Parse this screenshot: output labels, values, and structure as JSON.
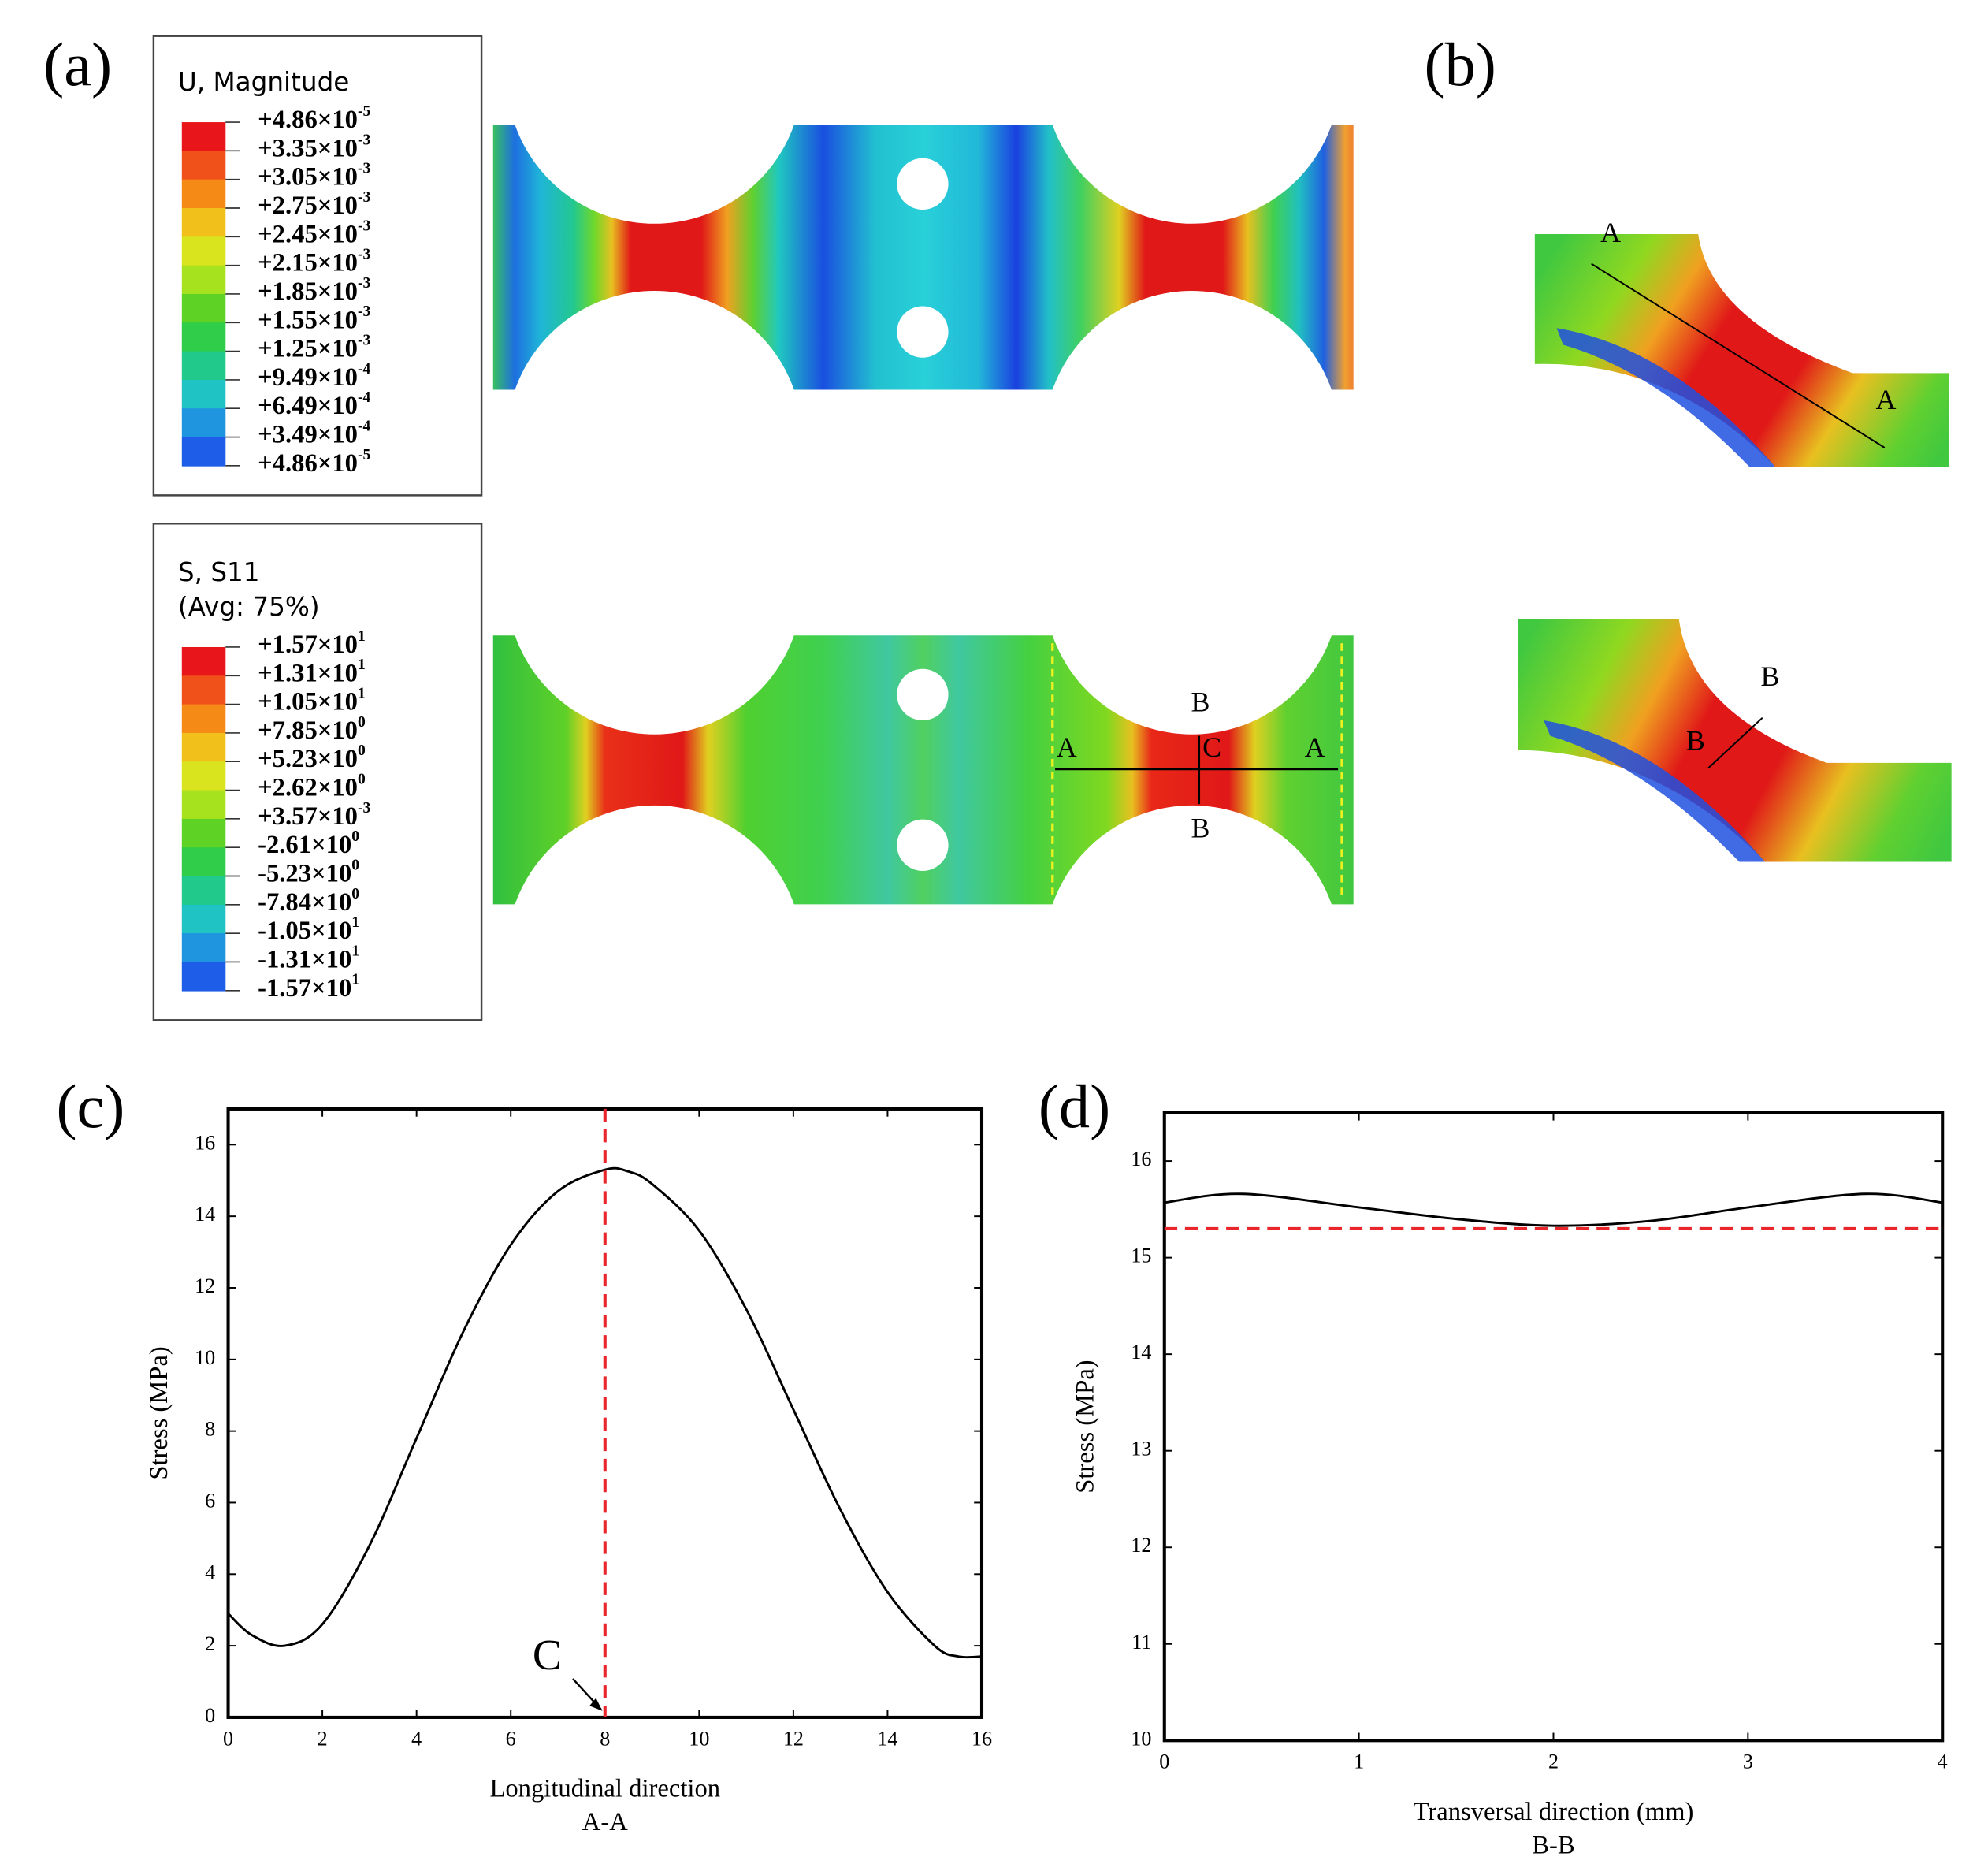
{
  "panels": {
    "a": "(a)",
    "b": "(b)",
    "c": "(c)",
    "d": "(d)"
  },
  "legend_u": {
    "title": "U, Magnitude",
    "levels": [
      {
        "base": "+4.86×10",
        "exp": "-5"
      },
      {
        "base": "+3.35×10",
        "exp": "-3"
      },
      {
        "base": "+3.05×10",
        "exp": "-3"
      },
      {
        "base": "+2.75×10",
        "exp": "-3"
      },
      {
        "base": "+2.45×10",
        "exp": "-3"
      },
      {
        "base": "+2.15×10",
        "exp": "-3"
      },
      {
        "base": "+1.85×10",
        "exp": "-3"
      },
      {
        "base": "+1.55×10",
        "exp": "-3"
      },
      {
        "base": "+1.25×10",
        "exp": "-3"
      },
      {
        "base": "+9.49×10",
        "exp": "-4"
      },
      {
        "base": "+6.49×10",
        "exp": "-4"
      },
      {
        "base": "+3.49×10",
        "exp": "-4"
      },
      {
        "base": "+4.86×10",
        "exp": "-5"
      }
    ]
  },
  "legend_s": {
    "title": "S, S11",
    "subtitle": "(Avg: 75%)",
    "levels": [
      {
        "base": "+1.57×10",
        "exp": "1"
      },
      {
        "base": "+1.31×10",
        "exp": "1"
      },
      {
        "base": "+1.05×10",
        "exp": "1"
      },
      {
        "base": "+7.85×10",
        "exp": "0"
      },
      {
        "base": "+5.23×10",
        "exp": "0"
      },
      {
        "base": "+2.62×10",
        "exp": "0"
      },
      {
        "base": "+3.57×10",
        "exp": "-3"
      },
      {
        "base": "-2.61×10",
        "exp": "0"
      },
      {
        "base": "-5.23×10",
        "exp": "0"
      },
      {
        "base": "-7.84×10",
        "exp": "0"
      },
      {
        "base": "-1.05×10",
        "exp": "1"
      },
      {
        "base": "-1.31×10",
        "exp": "1"
      },
      {
        "base": "-1.57×10",
        "exp": "1"
      }
    ]
  },
  "sections_a": [
    "A",
    "C",
    "A",
    "B",
    "B"
  ],
  "sections_b": [
    "A",
    "A",
    "B",
    "B"
  ],
  "chart_data": [
    {
      "type": "line",
      "xlabel": "Longitudinal direction",
      "xlabel2": "A-A",
      "ylabel": "Stress (MPa)",
      "x": [
        0,
        0.5,
        1.2,
        2,
        3,
        4,
        5,
        6,
        7,
        8,
        8.5,
        9,
        10,
        11,
        12,
        13,
        14,
        15,
        15.5,
        16
      ],
      "series": [
        {
          "color": "#000000",
          "values": [
            2.9,
            2.3,
            2.0,
            2.6,
            4.8,
            7.8,
            10.8,
            13.2,
            14.7,
            15.3,
            15.25,
            14.9,
            13.6,
            11.4,
            8.6,
            5.8,
            3.5,
            2.0,
            1.7,
            1.7
          ]
        }
      ],
      "vline": 8,
      "ref_color": "#e8262b",
      "annotation": "C",
      "xlim": [
        0,
        16
      ],
      "ylim": [
        0,
        17
      ],
      "xticks": [
        0,
        2,
        4,
        6,
        8,
        10,
        12,
        14,
        16
      ],
      "yticks": [
        0,
        2,
        4,
        6,
        8,
        10,
        12,
        14,
        16
      ]
    },
    {
      "type": "line",
      "xlabel": "Transversal direction (mm)",
      "xlabel2": "B-B",
      "ylabel": "Stress (MPa)",
      "x": [
        0,
        0.4,
        1,
        1.5,
        2,
        2.5,
        3,
        3.6,
        4
      ],
      "series": [
        {
          "color": "#000000",
          "values": [
            15.57,
            15.66,
            15.52,
            15.4,
            15.33,
            15.38,
            15.52,
            15.66,
            15.57
          ]
        }
      ],
      "hline": 15.3,
      "ref_color": "#e8262b",
      "xlim": [
        0,
        4
      ],
      "ylim": [
        10,
        16.5
      ],
      "xticks": [
        0,
        1,
        2,
        3,
        4
      ],
      "yticks": [
        10,
        11,
        12,
        13,
        14,
        15,
        16
      ]
    }
  ]
}
